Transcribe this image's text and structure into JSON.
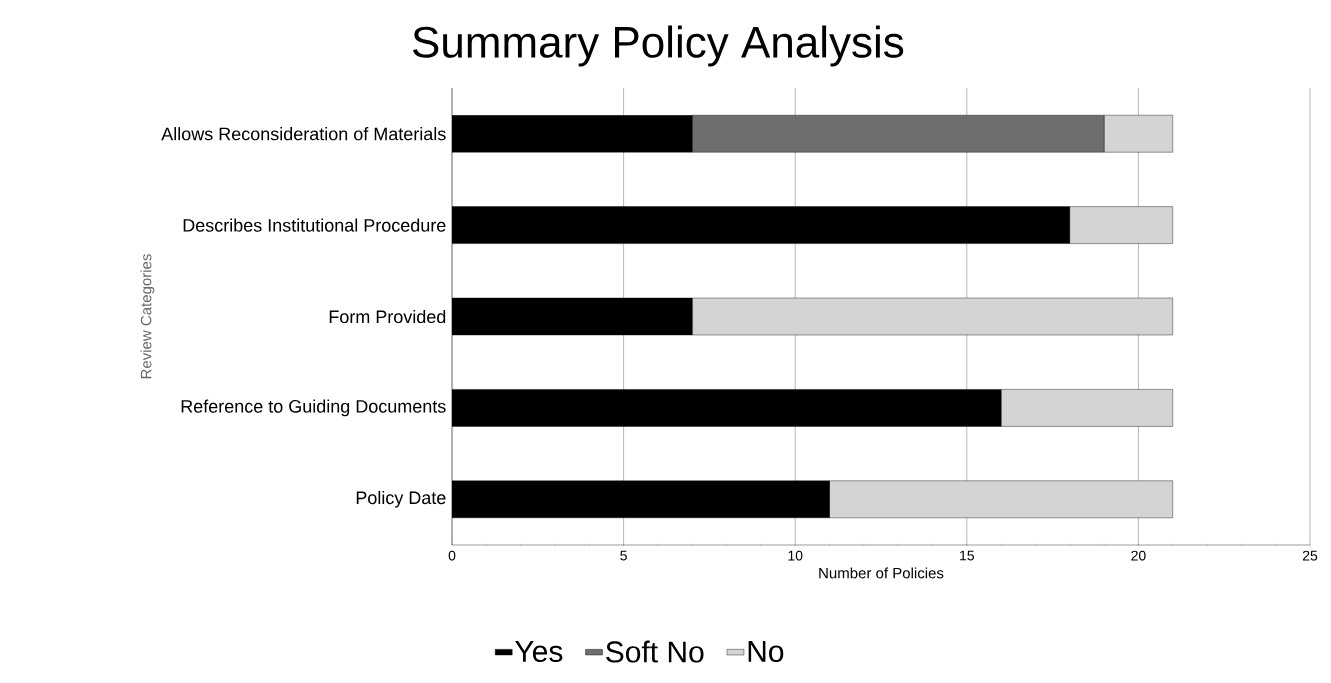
{
  "chart_data": {
    "type": "bar",
    "orientation": "horizontal",
    "stacked": true,
    "title": "Summary Policy Analysis",
    "xlabel": "Number of Policies",
    "ylabel": "Review Categories",
    "categories": [
      "Allows Reconsideration of Materials",
      "Describes Institutional  Procedure",
      "Form Provided",
      "Reference to Guiding Documents",
      "Policy Date"
    ],
    "series": [
      {
        "name": "Yes",
        "color": "#000000",
        "values": [
          7,
          18,
          7,
          16,
          11
        ]
      },
      {
        "name": "Soft No",
        "color": "#6e6e6e",
        "values": [
          12,
          0,
          0,
          0,
          0
        ]
      },
      {
        "name": "No",
        "color": "#d4d4d4",
        "values": [
          2,
          3,
          14,
          5,
          10
        ]
      }
    ],
    "xlim": [
      0,
      25
    ],
    "xticks": [
      0,
      5,
      10,
      15,
      20,
      25
    ],
    "grid": "x",
    "legend": "bottom"
  }
}
